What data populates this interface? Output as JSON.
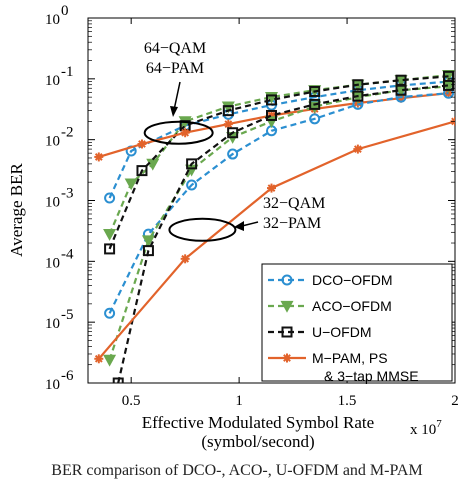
{
  "chart_data": {
    "type": "line",
    "xlabel": "Effective Modulated Symbol Rate",
    "xlabel2": "(symbol/second)",
    "x_multiplier": "x 10^7",
    "ylabel": "Average BER",
    "xlim": [
      0.3,
      2.0
    ],
    "ylim": [
      1e-06,
      1
    ],
    "yscale": "log",
    "x_ticks": [
      {
        "v": 0.5,
        "t": "0.5"
      },
      {
        "v": 1.0,
        "t": "1"
      },
      {
        "v": 1.5,
        "t": "1.5"
      },
      {
        "v": 2.0,
        "t": "2"
      }
    ],
    "y_ticks": [
      {
        "e": 0,
        "t": "10",
        "sup": "0"
      },
      {
        "e": -1,
        "t": "10",
        "sup": "-1"
      },
      {
        "e": -2,
        "t": "10",
        "sup": "-2"
      },
      {
        "e": -3,
        "t": "10",
        "sup": "-3"
      },
      {
        "e": -4,
        "t": "10",
        "sup": "-4"
      },
      {
        "e": -5,
        "t": "10",
        "sup": "-5"
      },
      {
        "e": -6,
        "t": "10",
        "sup": "-6"
      }
    ],
    "legend": {
      "position": "bottom-right",
      "box": true
    },
    "series": [
      {
        "name": "DCO−OFDM",
        "group": "64-QAM",
        "color": "#2b8fd1",
        "dash": "6,4",
        "marker": "circle",
        "legend": true,
        "points": [
          [
            0.4,
            0.0011
          ],
          [
            0.5,
            0.0065
          ],
          [
            0.75,
            0.017
          ],
          [
            0.95,
            0.026
          ],
          [
            1.15,
            0.037
          ],
          [
            1.35,
            0.05
          ],
          [
            1.55,
            0.065
          ],
          [
            1.75,
            0.078
          ],
          [
            1.97,
            0.09
          ]
        ]
      },
      {
        "name": "ACO−OFDM",
        "group": "64-PAM",
        "color": "#6aa84f",
        "dash": "6,4",
        "marker": "triangle",
        "legend": true,
        "points": [
          [
            0.4,
            0.00028
          ],
          [
            0.5,
            0.0019
          ],
          [
            0.6,
            0.004
          ],
          [
            0.75,
            0.02
          ],
          [
            0.95,
            0.035
          ],
          [
            1.15,
            0.05
          ],
          [
            1.35,
            0.065
          ],
          [
            1.55,
            0.08
          ],
          [
            1.75,
            0.095
          ],
          [
            1.97,
            0.115
          ]
        ]
      },
      {
        "name": "U−OFDM",
        "group": "64-QAM",
        "color": "#111111",
        "dash": "6,4",
        "marker": "square",
        "legend": true,
        "points": [
          [
            0.4,
            0.00016
          ],
          [
            0.55,
            0.0031
          ],
          [
            0.75,
            0.017
          ],
          [
            0.95,
            0.03
          ],
          [
            1.15,
            0.045
          ],
          [
            1.35,
            0.062
          ],
          [
            1.55,
            0.08
          ],
          [
            1.75,
            0.095
          ],
          [
            1.97,
            0.11
          ]
        ]
      },
      {
        "name": "M−PAM, PS",
        "name2": "& 3−tap MMSE",
        "group": "64-PAM",
        "color": "#e2632b",
        "dash": "",
        "marker": "star",
        "legend": true,
        "points": [
          [
            0.35,
            0.0052
          ],
          [
            0.55,
            0.0085
          ],
          [
            0.75,
            0.013
          ],
          [
            0.95,
            0.018
          ],
          [
            1.15,
            0.025
          ],
          [
            1.35,
            0.032
          ],
          [
            1.55,
            0.04
          ],
          [
            1.75,
            0.048
          ],
          [
            1.97,
            0.058
          ]
        ]
      },
      {
        "name": "DCO−OFDM",
        "group": "32-QAM",
        "color": "#2b8fd1",
        "dash": "6,4",
        "marker": "circle",
        "legend": false,
        "points": [
          [
            0.4,
            1.4e-05
          ],
          [
            0.58,
            0.00028
          ],
          [
            0.78,
            0.0018
          ],
          [
            0.97,
            0.0058
          ],
          [
            1.15,
            0.014
          ],
          [
            1.35,
            0.022
          ],
          [
            1.55,
            0.038
          ],
          [
            1.75,
            0.05
          ],
          [
            1.97,
            0.058
          ]
        ]
      },
      {
        "name": "ACO−OFDM",
        "group": "32-PAM",
        "color": "#6aa84f",
        "dash": "6,4",
        "marker": "triangle",
        "legend": false,
        "points": [
          [
            0.4,
            2.4e-06
          ],
          [
            0.58,
            0.00022
          ],
          [
            0.78,
            0.0032
          ],
          [
            0.97,
            0.011
          ],
          [
            1.15,
            0.02
          ],
          [
            1.35,
            0.035
          ],
          [
            1.55,
            0.05
          ],
          [
            1.75,
            0.065
          ],
          [
            1.97,
            0.075
          ]
        ]
      },
      {
        "name": "U−OFDM",
        "group": "32-QAM",
        "color": "#111111",
        "dash": "6,4",
        "marker": "square",
        "legend": false,
        "points": [
          [
            0.44,
            1e-06
          ],
          [
            0.58,
            0.00015
          ],
          [
            0.78,
            0.004
          ],
          [
            0.97,
            0.013
          ],
          [
            1.15,
            0.025
          ],
          [
            1.35,
            0.038
          ],
          [
            1.55,
            0.052
          ],
          [
            1.75,
            0.065
          ],
          [
            1.97,
            0.078
          ]
        ]
      },
      {
        "name": "M−PAM, PS",
        "group": "32-PAM",
        "color": "#e2632b",
        "dash": "",
        "marker": "star",
        "legend": false,
        "points": [
          [
            0.35,
            2.5e-06
          ],
          [
            0.75,
            0.00011
          ],
          [
            1.15,
            0.0016
          ],
          [
            1.55,
            0.007
          ],
          [
            2.0,
            0.02
          ]
        ]
      }
    ],
    "annotations": [
      {
        "lines": [
          "64−QAM",
          "64−PAM"
        ],
        "ellipse_center": [
          0.72,
          0.013
        ]
      },
      {
        "lines": [
          "32−QAM",
          "32−PAM"
        ],
        "ellipse_center": [
          0.83,
          0.00033
        ]
      }
    ]
  },
  "caption": "BER comparison of DCO-, ACO-, U-OFDM and M-PAM"
}
